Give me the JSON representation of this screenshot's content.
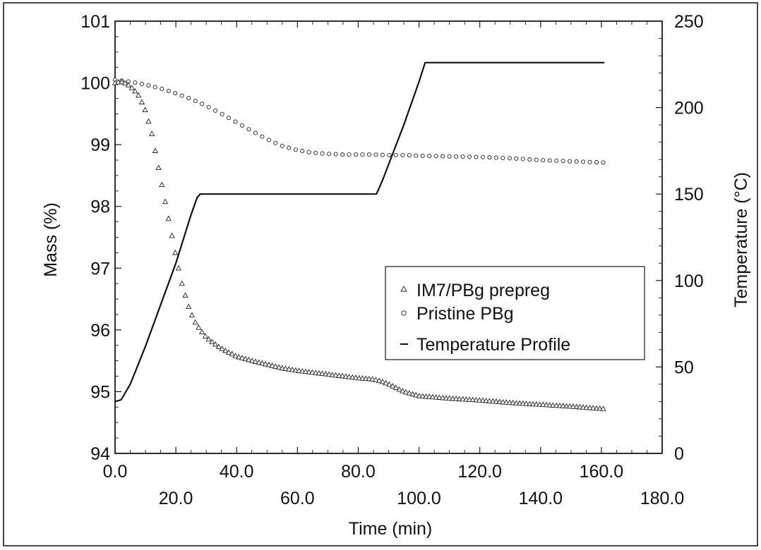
{
  "chart_data": {
    "type": "scatter",
    "xlabel": "Time (min)",
    "ylabel": "Mass (%)",
    "y2label": "Temperature (°C)",
    "xlim": [
      0,
      180
    ],
    "ylim": [
      94,
      101
    ],
    "y2lim": [
      0,
      250
    ],
    "x_ticks_upper": [
      "0.0",
      "40.0",
      "80.0",
      "120.0",
      "160.0"
    ],
    "x_ticks_lower": [
      "20.0",
      "60.0",
      "100.0",
      "140.0",
      "180.0"
    ],
    "y_ticks": [
      "94",
      "95",
      "96",
      "97",
      "98",
      "99",
      "100",
      "101"
    ],
    "y2_ticks": [
      "0",
      "50",
      "100",
      "150",
      "200",
      "250"
    ],
    "legend_position": "center-right",
    "grid": false,
    "series": [
      {
        "name": "IM7/PBg prepreg",
        "marker": "triangle",
        "axis": "left",
        "x": [
          0,
          2,
          4,
          6,
          8,
          10,
          12,
          14,
          16,
          18,
          20,
          22,
          24,
          26,
          28,
          30,
          32,
          34,
          36,
          38,
          40,
          45,
          50,
          55,
          60,
          65,
          70,
          75,
          80,
          85,
          88,
          90,
          95,
          100,
          105,
          110,
          120,
          130,
          140,
          150,
          161
        ],
        "values": [
          100.0,
          100.02,
          99.98,
          99.9,
          99.78,
          99.55,
          99.2,
          98.7,
          98.2,
          97.7,
          97.2,
          96.75,
          96.4,
          96.15,
          96.0,
          95.88,
          95.8,
          95.73,
          95.67,
          95.62,
          95.57,
          95.5,
          95.44,
          95.38,
          95.34,
          95.31,
          95.28,
          95.25,
          95.22,
          95.2,
          95.16,
          95.12,
          95.0,
          94.93,
          94.91,
          94.89,
          94.86,
          94.82,
          94.79,
          94.76,
          94.72
        ]
      },
      {
        "name": "Pristine PBg",
        "marker": "circle",
        "axis": "left",
        "x": [
          0,
          5,
          10,
          15,
          20,
          25,
          30,
          35,
          40,
          45,
          50,
          55,
          60,
          65,
          70,
          75,
          80,
          85,
          90,
          95,
          100,
          110,
          120,
          130,
          140,
          150,
          161
        ],
        "values": [
          100.05,
          100.02,
          99.97,
          99.91,
          99.83,
          99.74,
          99.63,
          99.5,
          99.36,
          99.22,
          99.09,
          98.98,
          98.91,
          98.87,
          98.85,
          98.84,
          98.84,
          98.84,
          98.83,
          98.83,
          98.82,
          98.81,
          98.8,
          98.78,
          98.75,
          98.73,
          98.71
        ]
      },
      {
        "name": "Temperature Profile",
        "marker": "line",
        "axis": "right",
        "x": [
          0,
          2,
          5,
          10,
          20,
          25,
          27,
          28,
          30,
          50,
          70,
          86,
          88,
          95,
          100,
          102,
          104,
          120,
          140,
          161
        ],
        "values": [
          30,
          31,
          40,
          62,
          110,
          138,
          148,
          150,
          150,
          150,
          150,
          150,
          158,
          190,
          215,
          226,
          226,
          226,
          226,
          226
        ]
      }
    ]
  }
}
